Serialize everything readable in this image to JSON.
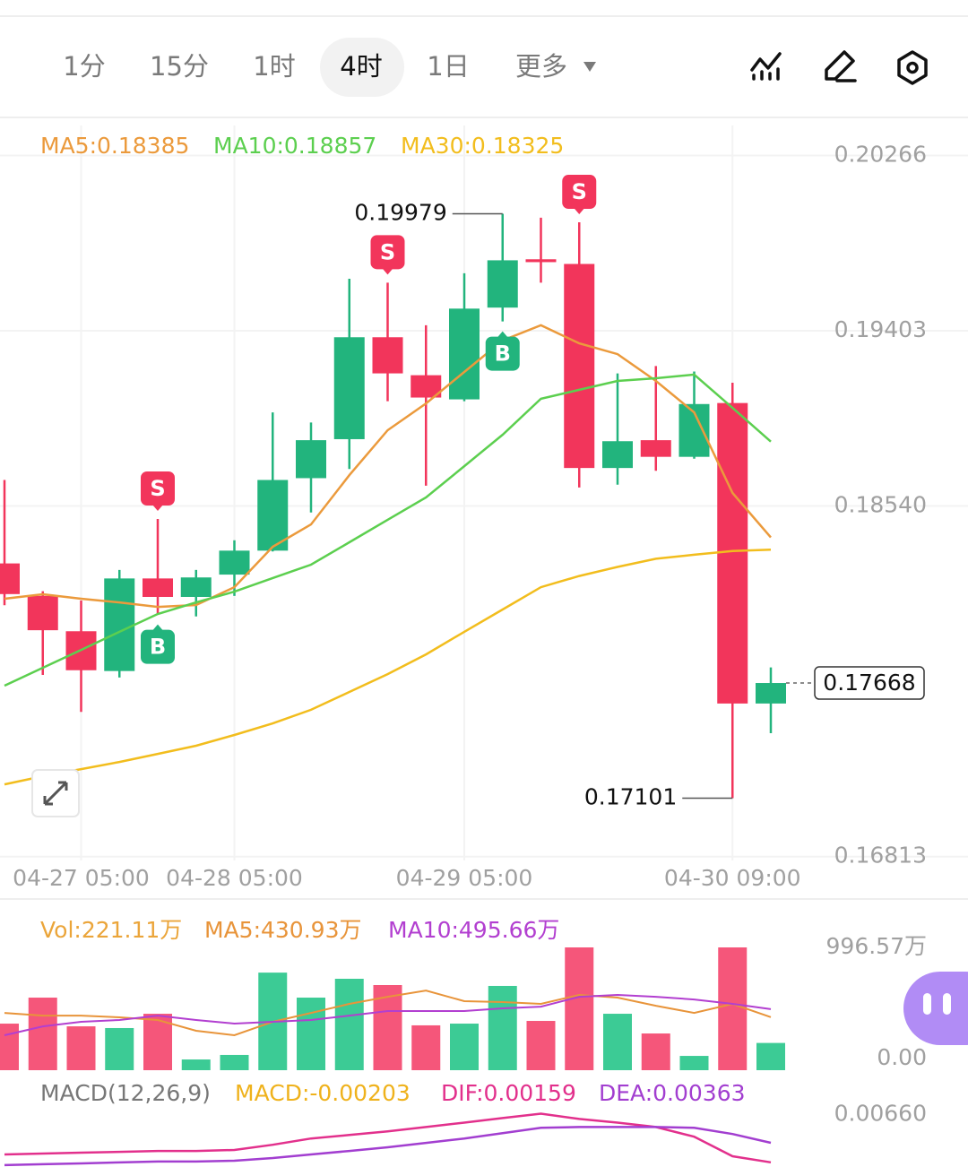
{
  "toolbar": {
    "tabs": [
      "1分",
      "15分",
      "1时",
      "4时",
      "1日",
      "更多"
    ]
  },
  "chart_data": [
    {
      "type": "candlestick",
      "categories": [
        null,
        null,
        "04-27 05:00",
        null,
        null,
        null,
        "04-28 05:00",
        null,
        null,
        null,
        null,
        null,
        "04-29 05:00",
        null,
        null,
        null,
        null,
        null,
        null,
        "04-30 09:00",
        null
      ],
      "open": [
        0.18257,
        0.18097,
        0.17923,
        0.17727,
        0.18183,
        0.18092,
        0.18202,
        0.1832,
        0.18677,
        0.18869,
        0.19371,
        0.19184,
        0.19065,
        0.19517,
        0.19755,
        0.19732,
        0.18727,
        0.18864,
        0.18782,
        0.19047,
        0.17567
      ],
      "high": [
        0.18668,
        0.1812,
        0.18074,
        0.18225,
        0.18476,
        0.18225,
        0.18371,
        0.19001,
        0.18951,
        0.19659,
        0.1964,
        0.1943,
        0.19686,
        0.19979,
        0.1996,
        0.19937,
        0.19193,
        0.19229,
        0.19202,
        0.19147,
        0.17745
      ],
      "low": [
        0.18051,
        0.17708,
        0.17526,
        0.17695,
        0.18005,
        0.17996,
        0.18097,
        0.18316,
        0.18508,
        0.18722,
        0.19056,
        0.1864,
        0.19056,
        0.19449,
        0.1964,
        0.18631,
        0.18645,
        0.18713,
        0.18773,
        0.17101,
        0.17421
      ],
      "close": [
        0.18106,
        0.17928,
        0.17731,
        0.18183,
        0.18092,
        0.18188,
        0.1832,
        0.18668,
        0.18864,
        0.19371,
        0.19193,
        0.19074,
        0.19512,
        0.1975,
        0.19741,
        0.18727,
        0.18859,
        0.18782,
        0.19042,
        0.17567,
        0.17668
      ],
      "up_color": "#22b47d",
      "down_color": "#f2355b",
      "series": [
        {
          "name": "MA5:0.18385",
          "color": "#eb9a3c",
          "values": [
            0.18083,
            0.18105,
            0.18083,
            0.18065,
            0.18043,
            0.18052,
            0.1814,
            0.18339,
            0.18449,
            0.18692,
            0.18913,
            0.19045,
            0.192,
            0.19355,
            0.1943,
            0.19341,
            0.19288,
            0.19156,
            0.19001,
            0.18604,
            0.18385
          ]
        },
        {
          "name": "MA10:0.18857",
          "color": "#5ccf4f",
          "values": [
            0.17655,
            0.17743,
            0.17831,
            0.1792,
            0.18008,
            0.18065,
            0.18118,
            0.18185,
            0.18251,
            0.18361,
            0.18472,
            0.18582,
            0.18736,
            0.18891,
            0.19068,
            0.19112,
            0.19156,
            0.19169,
            0.19187,
            0.19023,
            0.18857
          ]
        },
        {
          "name": "MA30:0.18325",
          "color": "#f2bd1d",
          "values": [
            0.17169,
            0.17209,
            0.17244,
            0.17279,
            0.17319,
            0.17359,
            0.17412,
            0.17469,
            0.17536,
            0.17624,
            0.17712,
            0.17809,
            0.1792,
            0.1803,
            0.1814,
            0.18195,
            0.1824,
            0.1828,
            0.183,
            0.18318,
            0.18325
          ]
        }
      ],
      "signals": {
        "sell": [
          null,
          null,
          null,
          null,
          "S",
          null,
          null,
          null,
          null,
          null,
          "S",
          null,
          null,
          null,
          null,
          "S",
          null,
          null,
          null,
          null,
          null
        ],
        "buy": [
          null,
          null,
          null,
          null,
          "B",
          null,
          null,
          null,
          null,
          null,
          null,
          null,
          null,
          "B",
          null,
          null,
          null,
          null,
          null,
          null,
          null
        ]
      },
      "ylim": [
        0.16794,
        0.20414
      ],
      "yticks": [
        0.20266,
        0.19403,
        {
          "value": 0.1854,
          "label": "0.18540"
        },
        0.16813
      ],
      "grid": true
    },
    {
      "type": "volume",
      "series": [
        {
          "name": "Vol:221.11万",
          "type": "bar",
          "color": "#eba53a",
          "values": [
            378,
            589,
            356,
            342,
            458,
            87,
            124,
            792,
            589,
            742,
            691,
            364,
            378,
            684,
            400,
            996.57,
            458,
            298,
            116,
            996.57,
            221.11
          ]
        },
        {
          "name": "MA5:430.93万",
          "type": "line",
          "color": "#e8943a",
          "values": [
            465,
            443,
            443,
            429,
            407,
            320,
            284,
            393,
            465,
            538,
            596,
            647,
            560,
            553,
            538,
            611,
            589,
            523,
            465,
            538,
            430.93
          ]
        },
        {
          "name": "MA10:495.66万",
          "type": "line",
          "color": "#b23fd0",
          "values": [
            284,
            356,
            393,
            407,
            443,
            407,
            378,
            393,
            407,
            443,
            480,
            480,
            480,
            502,
            516,
            596,
            611,
            596,
            574,
            538,
            495.66
          ]
        }
      ],
      "ylim": [
        0,
        996.57
      ],
      "yticks": [
        {
          "value": 996.57,
          "label": "996.57万"
        },
        {
          "value": 0,
          "label": "0.00"
        }
      ]
    },
    {
      "type": "macd",
      "title": "MACD(12,26,9)",
      "subtitle": "MACD:-0.00203",
      "series": [
        {
          "name": "DIF:0.00159",
          "color": "#e2308c",
          "values": [
            0.00241,
            0.00251,
            0.0026,
            0.00269,
            0.00278,
            0.00278,
            0.00288,
            0.00343,
            0.00408,
            0.00445,
            0.00483,
            0.00529,
            0.00575,
            0.00622,
            0.00668,
            0.00613,
            0.00575,
            0.00529,
            0.00427,
            0.00223,
            0.00159
          ]
        },
        {
          "name": "DEA:0.00363",
          "color": "#a23ed0",
          "values": [
            0.0013,
            0.00139,
            0.00148,
            0.00158,
            0.00167,
            0.00167,
            0.00176,
            0.00204,
            0.00241,
            0.00278,
            0.00316,
            0.00362,
            0.00408,
            0.00464,
            0.0052,
            0.00529,
            0.00529,
            0.00529,
            0.0052,
            0.00455,
            0.00363
          ]
        }
      ],
      "ylim": [
        0.0011,
        0.0072
      ],
      "yticks": [
        {
          "value": 0.0066,
          "label": "0.00660"
        }
      ]
    }
  ]
}
